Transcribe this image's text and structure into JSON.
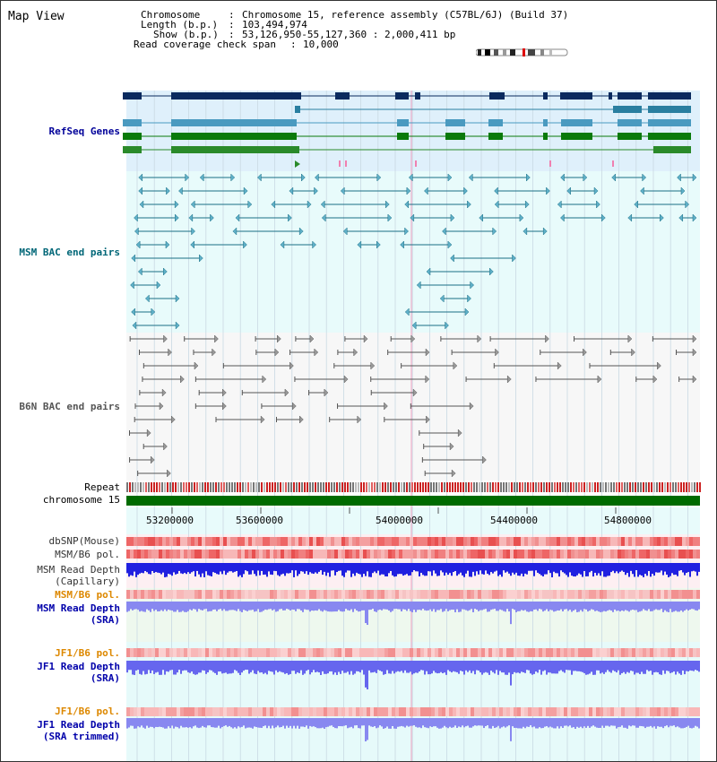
{
  "page": {
    "title": "Map View"
  },
  "info": {
    "chromosome_label": "Chromosome",
    "chromosome_value": "Chromosome 15, reference assembly (C57BL/6J) (Build 37)",
    "length_label": "Length (b.p.)",
    "length_value": "103,494,974",
    "show_label": "Show (b.p.)",
    "show_value": "53,126,950-55,127,360 : 2,000,411 bp",
    "span_label": "Read coverage check span",
    "span_value": "10,000"
  },
  "tracks": {
    "refseq": "RefSeq Genes",
    "msm_bac": "MSM BAC end pairs",
    "b6n_bac": "B6N BAC end pairs",
    "repeat": "Repeat",
    "chromosome": "chromosome 15",
    "dbsnp": "dbSNP(Mouse)",
    "msm_b6_pol": "MSM/B6 pol.",
    "msm_depth_cap_1": "MSM Read Depth",
    "msm_depth_cap_2": "(Capillary)",
    "msm_b6_pol_2": "MSM/B6 pol.",
    "msm_depth_sra_1": "MSM Read Depth",
    "msm_depth_sra_2": "(SRA)",
    "jf1_b6_pol": "JF1/B6 pol.",
    "jf1_depth_sra_1": "JF1 Read Depth",
    "jf1_depth_sra_2": "(SRA)",
    "jf1_b6_pol_2": "JF1/B6 pol.",
    "jf1_depth_trim_1": "JF1 Read Depth",
    "jf1_depth_trim_2": "(SRA trimmed)"
  },
  "axis": {
    "ticks": [
      "53200000",
      "53600000",
      "54000000",
      "54400000",
      "54800000"
    ]
  },
  "colors": {
    "refseq_label": "#000099",
    "msm_label": "#006677",
    "b6n_label": "#555555",
    "orange_label": "#dd8800",
    "blue_label": "#0000aa"
  }
}
